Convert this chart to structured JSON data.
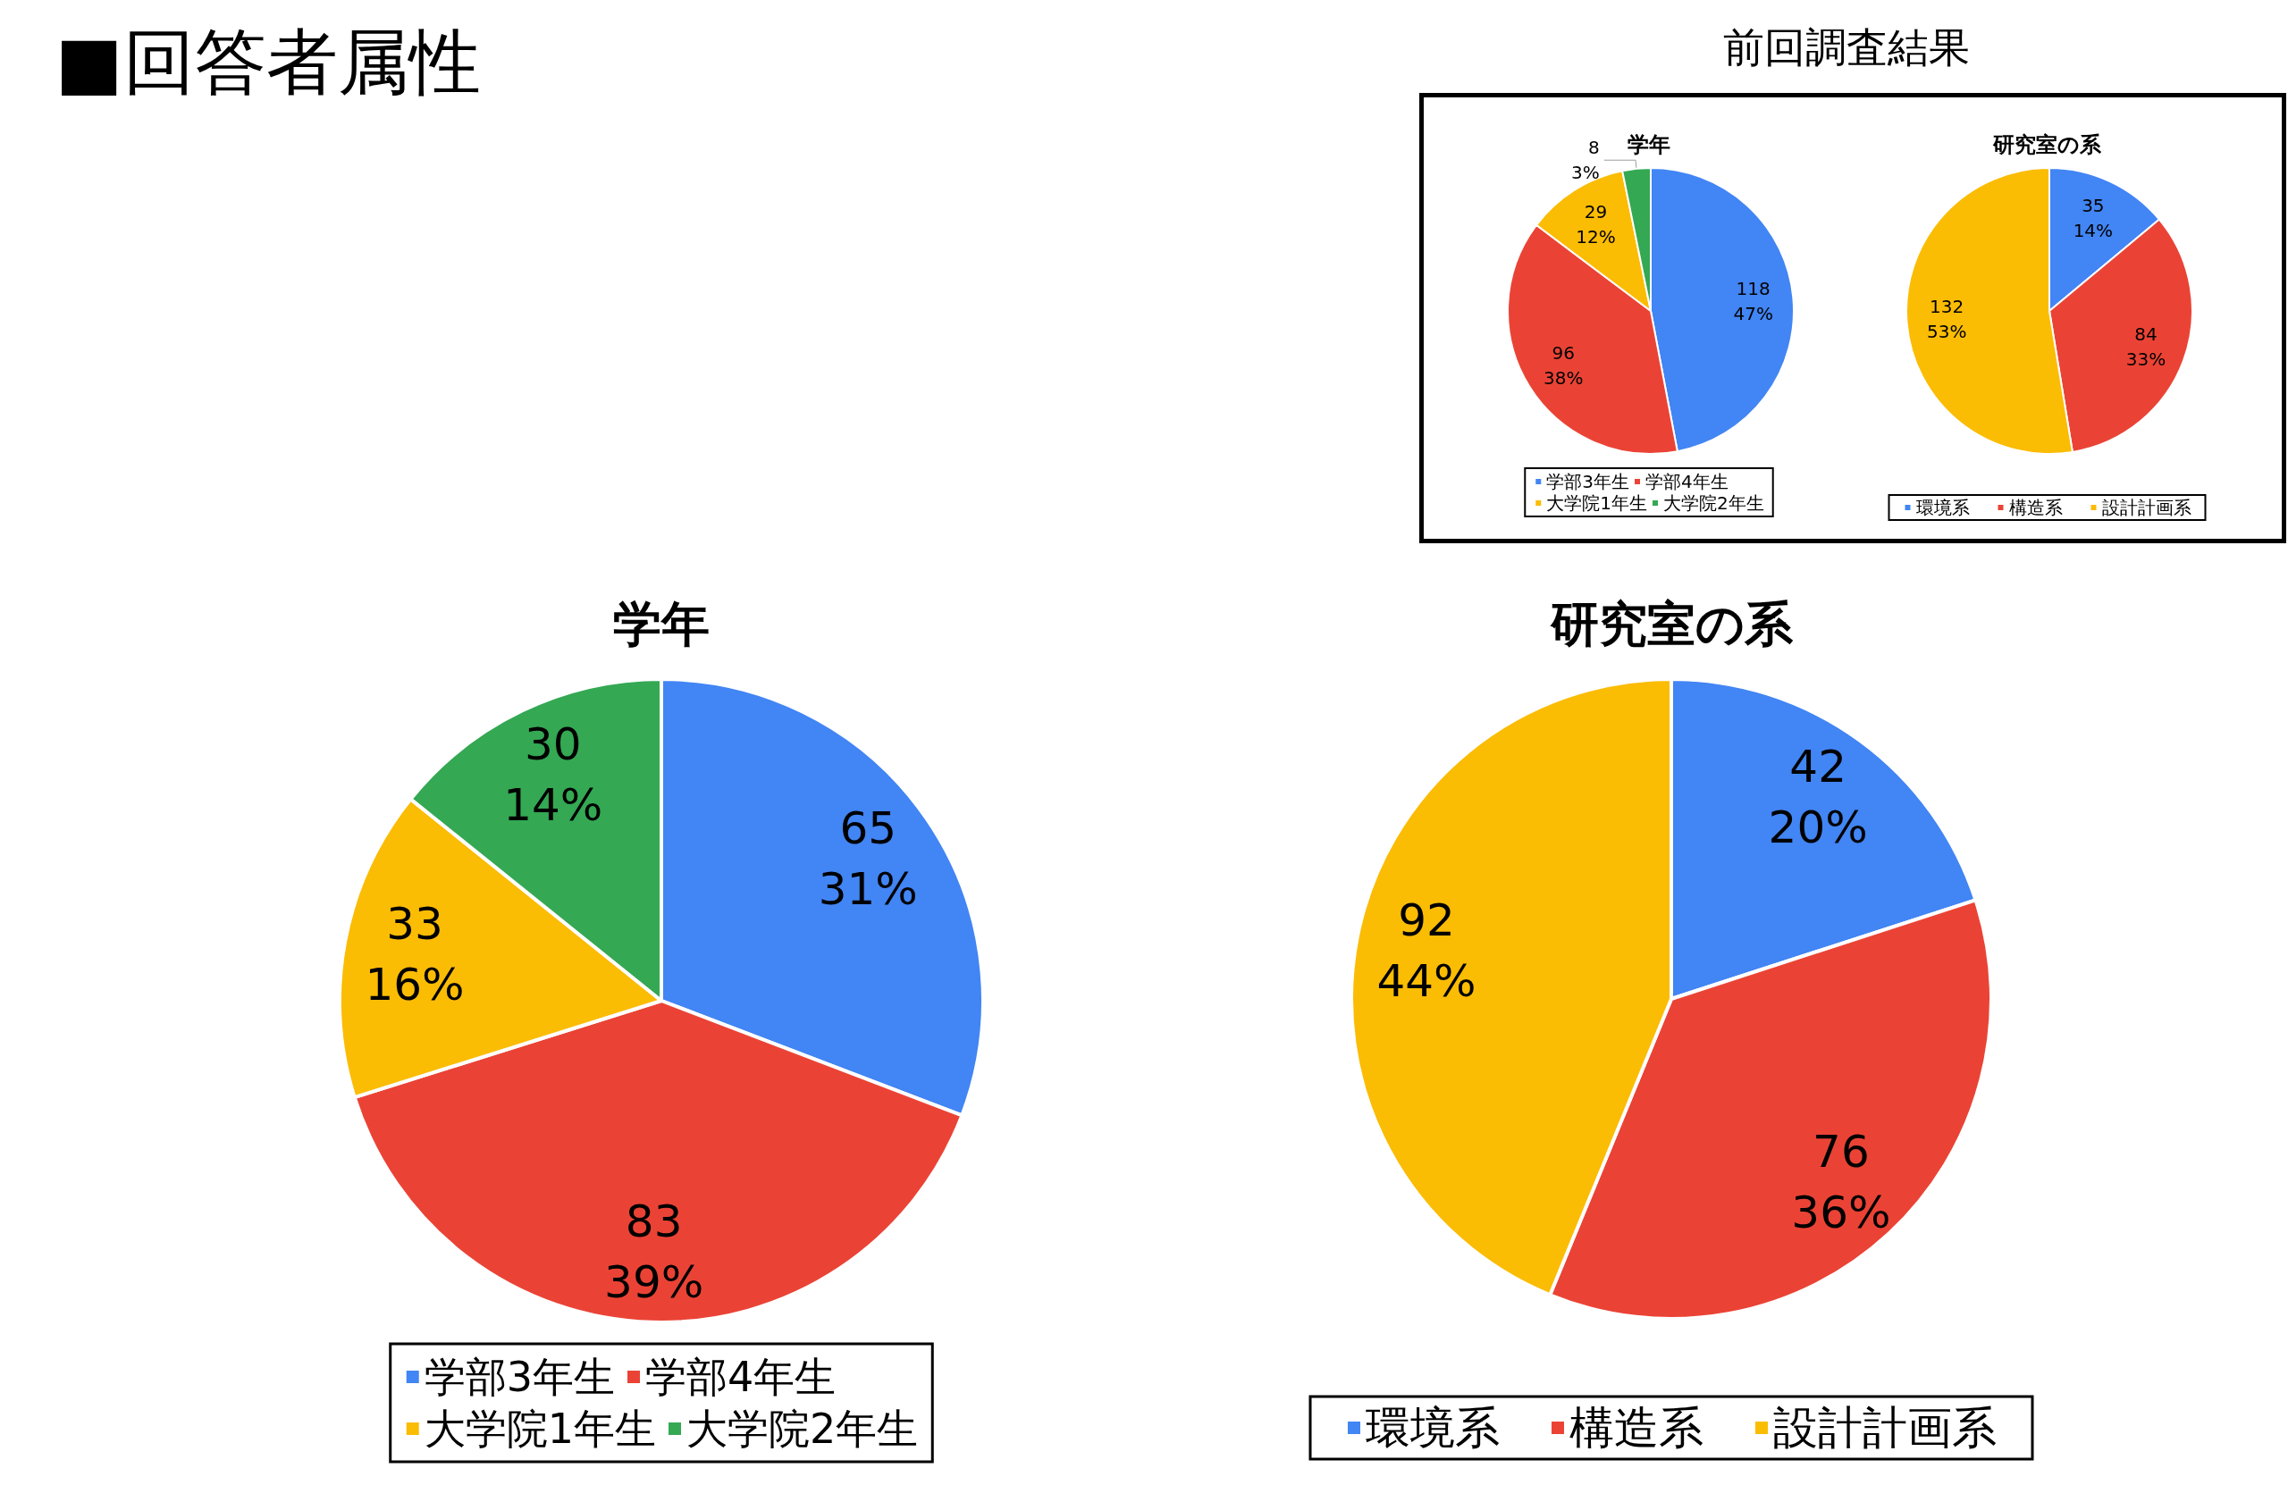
{
  "chart_data": [
    {
      "type": "pie",
      "title": "学年",
      "categories": [
        "学部3年生",
        "学部4年生",
        "大学院1年生",
        "大学院2年生"
      ],
      "values": [
        65,
        83,
        33,
        30
      ],
      "colors": [
        "#4285f4",
        "#ea4335",
        "#fbbc04",
        "#34a853"
      ],
      "value_labels": [
        "65\n31%",
        "83\n39%",
        "33\n16%",
        "30\n14%"
      ],
      "legend": "bottom",
      "annotations": [
        "■回答者属性"
      ]
    },
    {
      "type": "pie",
      "title": "研究室の系",
      "categories": [
        "環境系",
        "構造系",
        "設計計画系"
      ],
      "values": [
        42,
        76,
        92
      ],
      "colors": [
        "#4285f4",
        "#ea4335",
        "#fbbc04"
      ],
      "value_labels": [
        "42\n20%",
        "76\n36%",
        "92\n44%"
      ],
      "legend": "bottom"
    },
    {
      "type": "pie",
      "title": "学年",
      "categories": [
        "学部3年生",
        "学部4年生",
        "大学院1年生",
        "大学院2年生"
      ],
      "values": [
        118,
        96,
        29,
        8
      ],
      "colors": [
        "#4285f4",
        "#ea4335",
        "#fbbc04",
        "#34a853"
      ],
      "value_labels": [
        "118\n47%",
        "96\n38%",
        "29\n12%",
        "8\n3%"
      ],
      "legend": "bottom",
      "annotations": [
        "前回調査結果"
      ]
    },
    {
      "type": "pie",
      "title": "研究室の系",
      "categories": [
        "環境系",
        "構造系",
        "設計計画系"
      ],
      "values": [
        35,
        84,
        132
      ],
      "colors": [
        "#4285f4",
        "#ea4335",
        "#fbbc04"
      ],
      "value_labels": [
        "35\n14%",
        "84\n33%",
        "132\n53%"
      ],
      "legend": "bottom"
    }
  ]
}
